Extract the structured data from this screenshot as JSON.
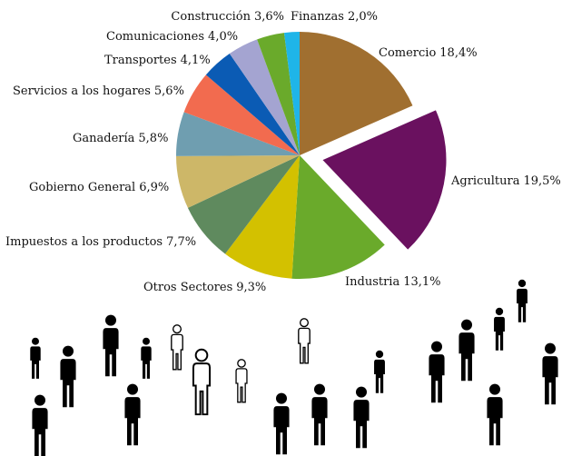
{
  "chart_data": {
    "type": "pie",
    "categories": [
      "Comercio",
      "Agricultura",
      "Industria",
      "Otros Sectores",
      "Impuestos a los productos",
      "Gobierno General",
      "Ganadería",
      "Servicios a los hogares",
      "Transportes",
      "Comunicaciones",
      "Construcción",
      "Finanzas"
    ],
    "values": [
      18.4,
      19.5,
      13.1,
      9.3,
      7.7,
      6.9,
      5.8,
      5.6,
      4.1,
      4.0,
      3.6,
      2.0
    ],
    "value_labels": [
      "18,4%",
      "19,5%",
      "13,1%",
      "9,3%",
      "7,7%",
      "6,9%",
      "5,8%",
      "5,6%",
      "4,1%",
      "4,0%",
      "3,6%",
      "2,0%"
    ],
    "colors": [
      "#a06f30",
      "#6a115f",
      "#6aaa2b",
      "#d3c100",
      "#5f8a5e",
      "#cdb768",
      "#6f9eb0",
      "#f26b4f",
      "#0b5bb4",
      "#a4a4d1",
      "#6aaa2b",
      "#1fb5e8"
    ],
    "explode": "Agricultura"
  }
}
